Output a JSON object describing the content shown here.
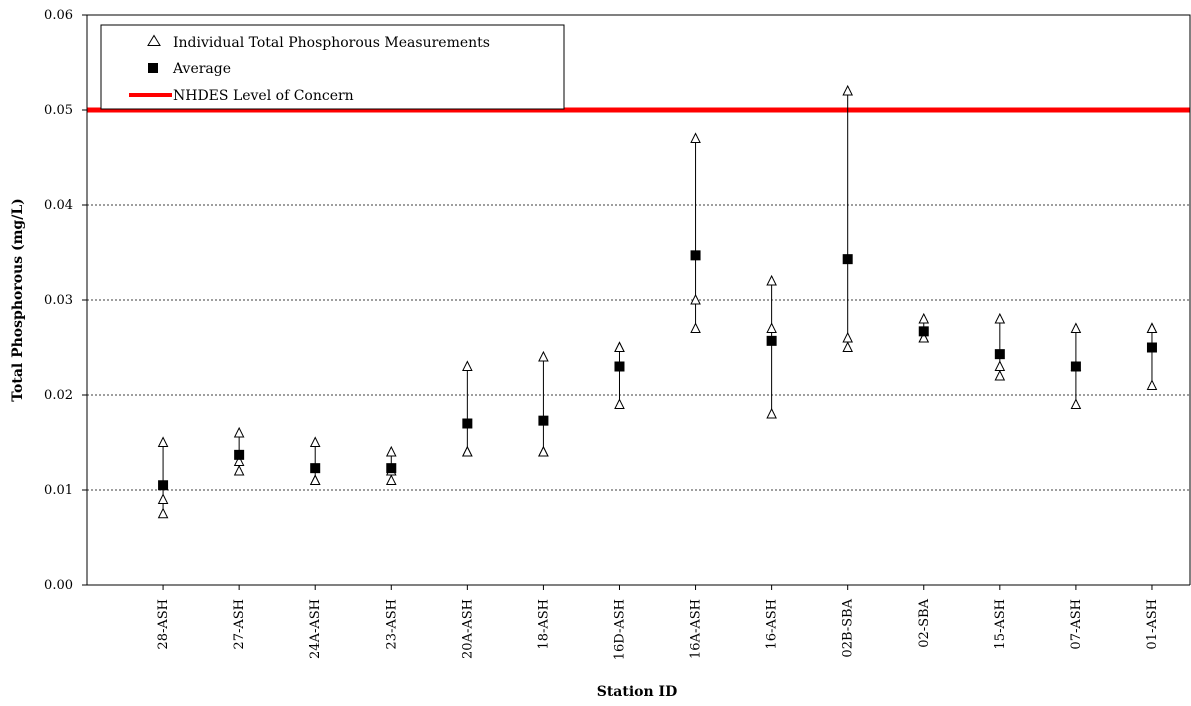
{
  "chart_data": {
    "type": "scatter",
    "title": "",
    "xlabel": "Station ID",
    "ylabel": "Total Phosphorous (mg/L)",
    "ylim": [
      0,
      0.06
    ],
    "yticks": [
      "0.00",
      "0.01",
      "0.02",
      "0.03",
      "0.04",
      "0.05",
      "0.06"
    ],
    "grid": "horizontal dashed",
    "legend_position": "top-left",
    "categories": [
      "28-ASH",
      "27-ASH",
      "24A-ASH",
      "23-ASH",
      "20A-ASH",
      "18-ASH",
      "16D-ASH",
      "16A-ASH",
      "16-ASH",
      "02B-SBA",
      "02-SBA",
      "15-ASH",
      "07-ASH",
      "01-ASH"
    ],
    "series": [
      {
        "name": "Individual Total Phosphorous Measurements",
        "marker": "open-triangle",
        "values": [
          [
            0.015,
            0.009,
            0.0075
          ],
          [
            0.016,
            0.013,
            0.012
          ],
          [
            0.015,
            0.011,
            0.011
          ],
          [
            0.014,
            0.012,
            0.011
          ],
          [
            0.023,
            0.014,
            0.014
          ],
          [
            0.024,
            0.014,
            0.014
          ],
          [
            0.025,
            0.025,
            0.019
          ],
          [
            0.047,
            0.03,
            0.027
          ],
          [
            0.032,
            0.027,
            0.018
          ],
          [
            0.052,
            0.026,
            0.025
          ],
          [
            0.028,
            0.026,
            0.026
          ],
          [
            0.028,
            0.023,
            0.022
          ],
          [
            0.027,
            0.023,
            0.019
          ],
          [
            0.027,
            0.027,
            0.021
          ]
        ]
      },
      {
        "name": "Average",
        "marker": "filled-square",
        "values": [
          0.0105,
          0.0137,
          0.0123,
          0.0123,
          0.017,
          0.0173,
          0.023,
          0.0347,
          0.0257,
          0.0343,
          0.0267,
          0.0243,
          0.023,
          0.025
        ]
      }
    ],
    "reference_lines": [
      {
        "name": "NHDES Level of Concern",
        "value": 0.05,
        "color": "#ff0000"
      }
    ]
  }
}
